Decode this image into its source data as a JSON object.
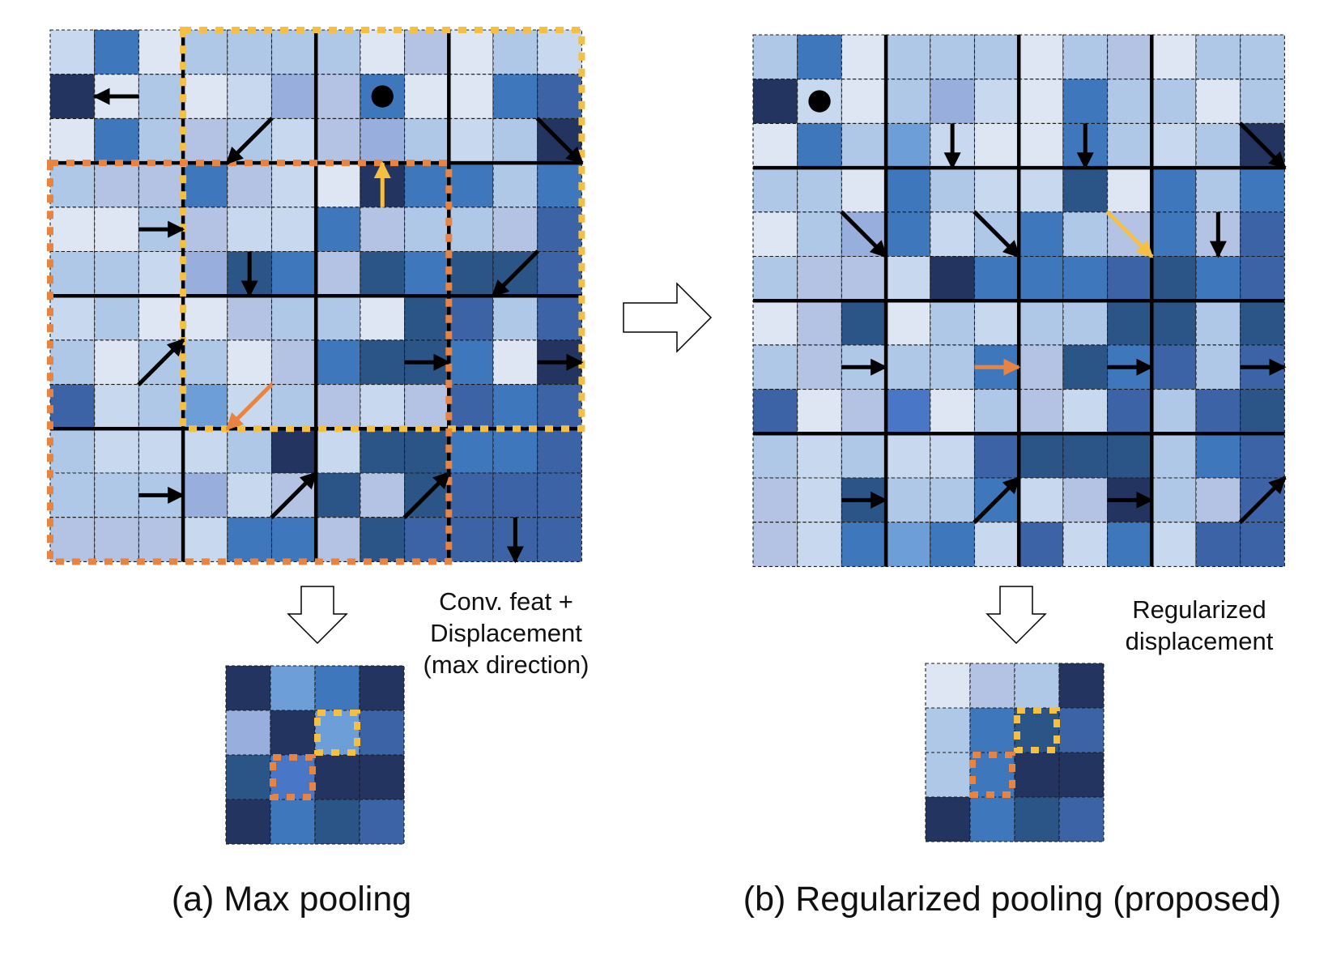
{
  "labels": {
    "left_note": [
      "Conv. feat +",
      "Displacement",
      "(max direction)"
    ],
    "right_note": [
      "Regularized",
      "displacement"
    ],
    "caption_a": "(a) Max pooling",
    "caption_b": "(b) Regularized pooling (proposed)"
  },
  "colors": {
    "background": "#ffffff",
    "grid_line": "#000000",
    "orange_highlight": "#E8843F",
    "yellow_highlight": "#F5BF42",
    "arrow": "#000000",
    "shades": {
      "a": "#DEE6F4",
      "b": "#C8D8EE",
      "c": "#AFC8E7",
      "d": "#B4C2E4",
      "e": "#98AEDC",
      "f": "#6E9ED8",
      "g": "#3F77BC",
      "h": "#3B63A6",
      "i": "#2B5587",
      "j": "#22345F",
      "k": "#4A76C8"
    }
  },
  "panel_a": {
    "grid": [
      "bgaccccadacb",
      "jacabedgaagh",
      "agcdcbdecbcj",
      "cddgdbajggcg",
      "aacdbbgdccdh",
      "ccbeigdigiih",
      "bcaadccaihch",
      "caccadgiigaj",
      "hbcfbcdbdhgh",
      "cbbbcjbiiggh",
      "cccebdidihhh",
      "dddbggdihhhh"
    ],
    "arrows": [
      {
        "row": 1,
        "col": 1,
        "dir": "left",
        "color": "black"
      },
      {
        "row": 2,
        "col": 4,
        "dir": "down-left",
        "color": "black"
      },
      {
        "row": 2,
        "col": 11,
        "dir": "down-right",
        "color": "black"
      },
      {
        "row": 3,
        "col": 7,
        "dir": "up",
        "color": "yellow"
      },
      {
        "row": 4,
        "col": 2,
        "dir": "right",
        "color": "black"
      },
      {
        "row": 5,
        "col": 4,
        "dir": "down",
        "color": "black"
      },
      {
        "row": 5,
        "col": 10,
        "dir": "down-left",
        "color": "black"
      },
      {
        "row": 7,
        "col": 2,
        "dir": "up-right",
        "color": "black"
      },
      {
        "row": 8,
        "col": 4,
        "dir": "down-left",
        "color": "orange"
      },
      {
        "row": 7,
        "col": 8,
        "dir": "right",
        "color": "black"
      },
      {
        "row": 7,
        "col": 11,
        "dir": "right",
        "color": "black"
      },
      {
        "row": 10,
        "col": 2,
        "dir": "right",
        "color": "black"
      },
      {
        "row": 10,
        "col": 5,
        "dir": "up-right",
        "color": "black"
      },
      {
        "row": 10,
        "col": 8,
        "dir": "up-right",
        "color": "black"
      },
      {
        "row": 11,
        "col": 10,
        "dir": "down",
        "color": "black"
      }
    ],
    "dots": [
      {
        "row": 1,
        "col": 7
      }
    ],
    "highlight_regions": [
      {
        "color": "yellow",
        "row0": 0,
        "col0": 3,
        "rows": 9,
        "cols": 9
      },
      {
        "color": "orange",
        "row0": 3,
        "col0": 0,
        "rows": 9,
        "cols": 9
      }
    ]
  },
  "panel_b": {
    "grid": [
      "cgacccacdacc",
      "jbacebagccac",
      "agcfbaagcbcj",
      "ccagcbbiagcg",
      "acegbcgcdgdh",
      "cddbjggghigh",
      "adiacbcciici",
      "cdcccgdighch",
      "hadkacdbhchi",
      "cbcbbhiiicgh",
      "dbiccgbdjcdh",
      "dbgfgbhbgbhh"
    ],
    "arrows": [
      {
        "row": 2,
        "col": 4,
        "dir": "down",
        "color": "black"
      },
      {
        "row": 2,
        "col": 7,
        "dir": "down",
        "color": "black"
      },
      {
        "row": 2,
        "col": 11,
        "dir": "down-right",
        "color": "black"
      },
      {
        "row": 4,
        "col": 2,
        "dir": "down-right",
        "color": "black"
      },
      {
        "row": 4,
        "col": 5,
        "dir": "down-right",
        "color": "black"
      },
      {
        "row": 4,
        "col": 8,
        "dir": "down-right",
        "color": "yellow"
      },
      {
        "row": 4,
        "col": 10,
        "dir": "down",
        "color": "black"
      },
      {
        "row": 7,
        "col": 2,
        "dir": "right",
        "color": "black"
      },
      {
        "row": 7,
        "col": 5,
        "dir": "right",
        "color": "orange"
      },
      {
        "row": 7,
        "col": 8,
        "dir": "right",
        "color": "black"
      },
      {
        "row": 7,
        "col": 11,
        "dir": "right",
        "color": "black"
      },
      {
        "row": 10,
        "col": 2,
        "dir": "right",
        "color": "black"
      },
      {
        "row": 10,
        "col": 5,
        "dir": "up-right",
        "color": "black"
      },
      {
        "row": 10,
        "col": 8,
        "dir": "right",
        "color": "black"
      },
      {
        "row": 10,
        "col": 11,
        "dir": "up-right",
        "color": "black"
      }
    ],
    "dots": [
      {
        "row": 1,
        "col": 1
      }
    ]
  },
  "pooled_a": {
    "grid": [
      "jfgj",
      "ejfh",
      "ikjj",
      "jgih"
    ],
    "highlights": [
      {
        "row": 1,
        "col": 2,
        "color": "yellow"
      },
      {
        "row": 2,
        "col": 1,
        "color": "orange"
      }
    ]
  },
  "pooled_b": {
    "grid": [
      "adcj",
      "cgih",
      "cgjj",
      "jgih"
    ],
    "highlights": [
      {
        "row": 1,
        "col": 2,
        "color": "yellow"
      },
      {
        "row": 2,
        "col": 1,
        "color": "orange"
      }
    ]
  }
}
